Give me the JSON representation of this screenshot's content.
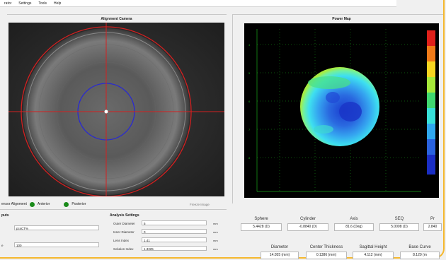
{
  "menu": [
    "rator",
    "Settings",
    "Tools",
    "Help"
  ],
  "alignment_camera": {
    "title": "Alignment Camera"
  },
  "power_map": {
    "title": "Power Map",
    "y_ticks": [
      "",
      "4",
      "5",
      "6",
      "7",
      "8"
    ],
    "x_label": ""
  },
  "status": {
    "label": "ensor Alignment",
    "anterior": "Anterior",
    "posterior": "Posterior",
    "freeze_label": "Freeze Image"
  },
  "inputs": {
    "title": "puts",
    "fields": [
      {
        "label": "",
        "value": "pcsCT%"
      },
      {
        "label": "e",
        "value": "100"
      }
    ]
  },
  "analysis": {
    "title": "Analysis Settings",
    "rows": [
      {
        "label": "Outer Diameter",
        "value": "5",
        "unit": "mm"
      },
      {
        "label": "Inner Diameter",
        "value": "0",
        "unit": "mm"
      },
      {
        "label": "Lens Index",
        "value": "1.41",
        "unit": "mm"
      },
      {
        "label": "Solution Index",
        "value": "1.3325",
        "unit": "mm"
      }
    ]
  },
  "results_row1": [
    {
      "label": "Sphere",
      "value": "5.4428 (D)"
    },
    {
      "label": "Cylinder",
      "value": "-0.8840 (D)"
    },
    {
      "label": "Axis",
      "value": "81.6 (Deg)"
    },
    {
      "label": "SEQ",
      "value": "5.0008 (D)"
    },
    {
      "label": "Pr",
      "value": "2.840"
    }
  ],
  "results_row2": [
    {
      "label": "Diameter",
      "value": "14.055 (mm)"
    },
    {
      "label": "Center Thickness",
      "value": "0.1386 (mm)"
    },
    {
      "label": "Sagittal Height",
      "value": "4.112 (mm)"
    },
    {
      "label": "Base Curve",
      "value": "8.120 (m"
    }
  ]
}
